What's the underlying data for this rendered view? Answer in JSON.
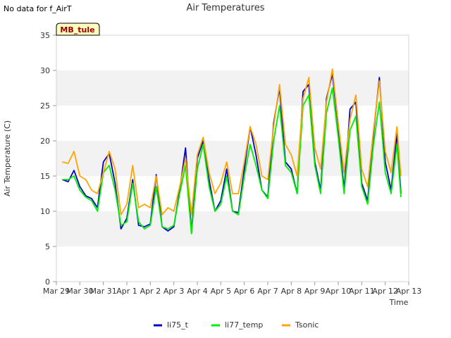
{
  "header": {
    "nodata_text": "No data for f_AirT",
    "title": "Air Temperatures"
  },
  "station_badge": "MB_tule",
  "chart_data": {
    "type": "line",
    "title": "Air Temperatures",
    "xlabel": "Time",
    "ylabel": "Air Temperature (C)",
    "ylim": [
      0,
      35
    ],
    "yticks": [
      0,
      5,
      10,
      15,
      20,
      25,
      30,
      35
    ],
    "xticks": [
      "Mar 29",
      "Mar 30",
      "Mar 31",
      "Apr 1",
      "Apr 2",
      "Apr 3",
      "Apr 4",
      "Apr 5",
      "Apr 6",
      "Apr 7",
      "Apr 8",
      "Apr 9",
      "Apr 10",
      "Apr 11",
      "Apr 12",
      "Apr 13"
    ],
    "grid": "horizontal bands",
    "legend_position": "bottom",
    "series": [
      {
        "name": "li75_t",
        "color": "#0000cc",
        "x": [
          "Mar 29 06:00",
          "Mar 29 12:00",
          "Mar 29 18:00",
          "Mar 30 00:00",
          "Mar 30 06:00",
          "Mar 30 12:00",
          "Mar 30 18:00",
          "Mar 31 00:00",
          "Mar 31 06:00",
          "Mar 31 12:00",
          "Mar 31 18:00",
          "Apr 1 00:00",
          "Apr 1 06:00",
          "Apr 1 12:00",
          "Apr 1 18:00",
          "Apr 2 00:00",
          "Apr 2 06:00",
          "Apr 2 12:00",
          "Apr 2 18:00",
          "Apr 3 00:00",
          "Apr 3 06:00",
          "Apr 3 12:00",
          "Apr 3 18:00",
          "Apr 4 00:00",
          "Apr 4 06:00",
          "Apr 4 12:00",
          "Apr 4 18:00",
          "Apr 5 00:00",
          "Apr 5 06:00",
          "Apr 5 12:00",
          "Apr 5 18:00",
          "Apr 6 00:00",
          "Apr 6 06:00",
          "Apr 6 12:00",
          "Apr 6 18:00",
          "Apr 7 00:00",
          "Apr 7 06:00",
          "Apr 7 12:00",
          "Apr 7 18:00",
          "Apr 8 00:00",
          "Apr 8 06:00",
          "Apr 8 12:00",
          "Apr 8 18:00",
          "Apr 9 00:00",
          "Apr 9 06:00",
          "Apr 9 12:00",
          "Apr 9 18:00",
          "Apr 10 00:00",
          "Apr 10 06:00",
          "Apr 10 12:00",
          "Apr 10 18:00",
          "Apr 11 00:00",
          "Apr 11 06:00",
          "Apr 11 12:00",
          "Apr 11 18:00",
          "Apr 12 00:00",
          "Apr 12 06:00",
          "Apr 12 12:00",
          "Apr 12 16:00"
        ],
        "y": [
          14.5,
          14.2,
          15.8,
          13.5,
          12.2,
          11.8,
          10.5,
          17.0,
          18.2,
          14.0,
          7.5,
          9.0,
          14.5,
          8.0,
          7.8,
          8.2,
          15.2,
          7.8,
          7.2,
          7.8,
          13.0,
          19.0,
          7.0,
          17.5,
          20.0,
          14.5,
          10.0,
          11.5,
          16.0,
          10.0,
          9.8,
          16.0,
          22.0,
          18.0,
          13.0,
          12.0,
          22.5,
          27.5,
          17.0,
          16.0,
          12.5,
          27.0,
          28.0,
          17.0,
          13.0,
          26.0,
          29.5,
          22.0,
          13.0,
          24.5,
          25.5,
          14.0,
          11.5,
          21.0,
          29.0,
          17.0,
          13.0,
          21.0,
          12.5
        ]
      },
      {
        "name": "li77_temp",
        "color": "#00ee00",
        "x": [
          "Mar 29 06:00",
          "Mar 29 12:00",
          "Mar 29 18:00",
          "Mar 30 00:00",
          "Mar 30 06:00",
          "Mar 30 12:00",
          "Mar 30 18:00",
          "Mar 31 00:00",
          "Mar 31 06:00",
          "Mar 31 12:00",
          "Mar 31 18:00",
          "Apr 1 00:00",
          "Apr 1 06:00",
          "Apr 1 12:00",
          "Apr 1 18:00",
          "Apr 2 00:00",
          "Apr 2 06:00",
          "Apr 2 12:00",
          "Apr 2 18:00",
          "Apr 3 00:00",
          "Apr 3 06:00",
          "Apr 3 12:00",
          "Apr 3 18:00",
          "Apr 4 00:00",
          "Apr 4 06:00",
          "Apr 4 12:00",
          "Apr 4 18:00",
          "Apr 5 00:00",
          "Apr 5 06:00",
          "Apr 5 12:00",
          "Apr 5 18:00",
          "Apr 6 00:00",
          "Apr 6 06:00",
          "Apr 6 12:00",
          "Apr 6 18:00",
          "Apr 7 00:00",
          "Apr 7 06:00",
          "Apr 7 12:00",
          "Apr 7 18:00",
          "Apr 8 00:00",
          "Apr 8 06:00",
          "Apr 8 12:00",
          "Apr 8 18:00",
          "Apr 9 00:00",
          "Apr 9 06:00",
          "Apr 9 12:00",
          "Apr 9 18:00",
          "Apr 10 00:00",
          "Apr 10 06:00",
          "Apr 10 12:00",
          "Apr 10 18:00",
          "Apr 11 00:00",
          "Apr 11 06:00",
          "Apr 11 12:00",
          "Apr 11 18:00",
          "Apr 12 00:00",
          "Apr 12 06:00",
          "Apr 12 12:00",
          "Apr 12 16:00"
        ],
        "y": [
          14.5,
          14.5,
          15.0,
          13.0,
          12.0,
          11.5,
          10.0,
          15.5,
          16.5,
          13.0,
          8.0,
          8.5,
          14.0,
          8.5,
          7.5,
          8.0,
          13.5,
          7.8,
          7.5,
          8.0,
          12.5,
          16.5,
          6.8,
          16.0,
          19.5,
          13.5,
          10.0,
          11.0,
          15.0,
          10.0,
          9.5,
          15.0,
          19.5,
          16.5,
          13.0,
          11.8,
          20.0,
          25.0,
          16.5,
          15.5,
          12.5,
          25.0,
          26.5,
          16.5,
          12.5,
          24.0,
          27.5,
          20.5,
          12.5,
          21.5,
          23.5,
          13.5,
          11.0,
          19.5,
          25.5,
          15.5,
          12.5,
          19.5,
          12.0
        ]
      },
      {
        "name": "Tsonic",
        "color": "#ffa500",
        "x": [
          "Mar 29 06:00",
          "Mar 29 12:00",
          "Mar 29 18:00",
          "Mar 30 00:00",
          "Mar 30 06:00",
          "Mar 30 12:00",
          "Mar 30 18:00",
          "Mar 31 00:00",
          "Mar 31 06:00",
          "Mar 31 12:00",
          "Mar 31 18:00",
          "Apr 1 00:00",
          "Apr 1 06:00",
          "Apr 1 12:00",
          "Apr 1 18:00",
          "Apr 2 00:00",
          "Apr 2 06:00",
          "Apr 2 12:00",
          "Apr 2 18:00",
          "Apr 3 00:00",
          "Apr 3 06:00",
          "Apr 3 12:00",
          "Apr 3 18:00",
          "Apr 4 00:00",
          "Apr 4 06:00",
          "Apr 4 12:00",
          "Apr 4 18:00",
          "Apr 5 00:00",
          "Apr 5 06:00",
          "Apr 5 12:00",
          "Apr 5 18:00",
          "Apr 6 00:00",
          "Apr 6 06:00",
          "Apr 6 12:00",
          "Apr 6 18:00",
          "Apr 7 00:00",
          "Apr 7 06:00",
          "Apr 7 12:00",
          "Apr 7 18:00",
          "Apr 8 00:00",
          "Apr 8 06:00",
          "Apr 8 12:00",
          "Apr 8 18:00",
          "Apr 9 00:00",
          "Apr 9 06:00",
          "Apr 9 12:00",
          "Apr 9 18:00",
          "Apr 10 00:00",
          "Apr 10 06:00",
          "Apr 10 12:00",
          "Apr 10 18:00",
          "Apr 11 00:00",
          "Apr 11 06:00",
          "Apr 11 12:00",
          "Apr 11 18:00",
          "Apr 12 00:00",
          "Apr 12 06:00",
          "Apr 12 12:00",
          "Apr 12 16:00"
        ],
        "y": [
          17.0,
          16.8,
          18.5,
          15.0,
          14.5,
          13.0,
          12.5,
          15.5,
          18.5,
          16.0,
          9.5,
          11.0,
          16.5,
          10.5,
          11.0,
          10.5,
          15.0,
          9.5,
          10.5,
          10.0,
          13.5,
          17.5,
          9.5,
          18.0,
          20.5,
          15.5,
          12.5,
          14.0,
          17.0,
          12.5,
          12.5,
          17.0,
          22.0,
          19.5,
          15.0,
          14.5,
          22.0,
          28.0,
          19.5,
          18.0,
          15.0,
          26.0,
          29.0,
          19.0,
          16.0,
          25.5,
          30.2,
          22.5,
          15.5,
          23.0,
          26.5,
          16.0,
          13.5,
          21.5,
          28.5,
          18.5,
          15.5,
          22.0,
          15.0
        ]
      }
    ]
  }
}
